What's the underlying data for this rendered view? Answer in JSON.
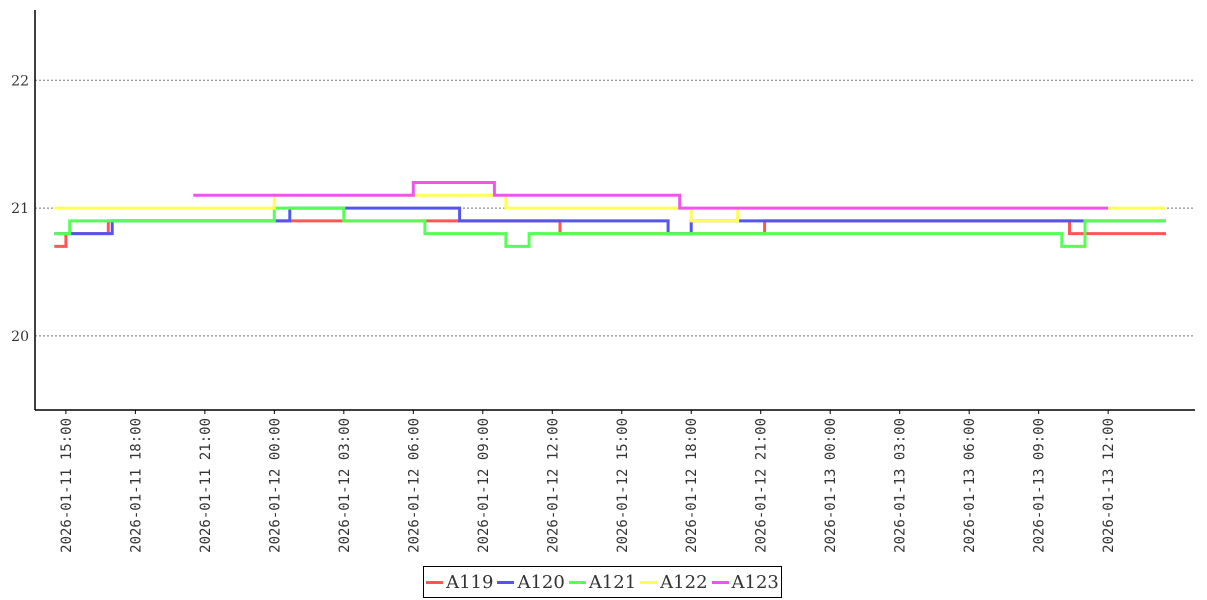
{
  "chart_data": {
    "type": "line",
    "title": "",
    "xlabel": "",
    "ylabel": "",
    "ylim": [
      19.42,
      22.55
    ],
    "xlim": [
      "2026-01-11 13:40",
      "2026-01-13 15:45"
    ],
    "y_ticks": [
      "20",
      "21",
      "22"
    ],
    "x_ticks": [
      "2026-01-11 15:00",
      "2026-01-11 18:00",
      "2026-01-11 21:00",
      "2026-01-12 00:00",
      "2026-01-12 03:00",
      "2026-01-12 06:00",
      "2026-01-12 09:00",
      "2026-01-12 12:00",
      "2026-01-12 15:00",
      "2026-01-12 18:00",
      "2026-01-12 21:00",
      "2026-01-13 00:00",
      "2026-01-13 03:00",
      "2026-01-13 06:00",
      "2026-01-13 09:00",
      "2026-01-13 12:00"
    ],
    "grid": "horizontal dotted",
    "legend_position": "bottom-center",
    "series": [
      {
        "name": "A119",
        "color": "#ff5555",
        "points": [
          [
            "2026-01-11 14:30",
            20.7
          ],
          [
            "2026-01-11 15:00",
            20.8
          ],
          [
            "2026-01-11 16:50",
            20.9
          ],
          [
            "2026-01-11 18:20",
            20.9
          ],
          [
            "2026-01-12 09:00",
            20.9
          ],
          [
            "2026-01-12 11:50",
            20.9
          ],
          [
            "2026-01-12 12:20",
            20.8
          ],
          [
            "2026-01-12 15:00",
            20.8
          ],
          [
            "2026-01-12 21:00",
            20.8
          ],
          [
            "2026-01-12 21:10",
            20.9
          ],
          [
            "2026-01-13 10:00",
            20.9
          ],
          [
            "2026-01-13 10:20",
            20.8
          ],
          [
            "2026-01-13 14:30",
            20.8
          ]
        ]
      },
      {
        "name": "A120",
        "color": "#5555ee",
        "points": [
          [
            "2026-01-11 14:30",
            20.8
          ],
          [
            "2026-01-11 16:50",
            20.8
          ],
          [
            "2026-01-11 17:00",
            20.9
          ],
          [
            "2026-01-12 00:30",
            20.9
          ],
          [
            "2026-01-12 00:40",
            21.0
          ],
          [
            "2026-01-12 07:30",
            21.0
          ],
          [
            "2026-01-12 08:00",
            20.9
          ],
          [
            "2026-01-12 16:00",
            20.9
          ],
          [
            "2026-01-12 17:00",
            20.8
          ],
          [
            "2026-01-12 18:00",
            20.9
          ],
          [
            "2026-01-12 22:00",
            20.9
          ],
          [
            "2026-01-13 14:30",
            20.9
          ]
        ]
      },
      {
        "name": "A121",
        "color": "#55ff55",
        "points": [
          [
            "2026-01-11 14:30",
            20.8
          ],
          [
            "2026-01-11 15:00",
            20.8
          ],
          [
            "2026-01-11 15:10",
            20.9
          ],
          [
            "2026-01-11 23:00",
            20.9
          ],
          [
            "2026-01-12 00:00",
            21.0
          ],
          [
            "2026-01-12 03:00",
            20.9
          ],
          [
            "2026-01-12 06:00",
            20.9
          ],
          [
            "2026-01-12 06:30",
            20.8
          ],
          [
            "2026-01-12 09:00",
            20.8
          ],
          [
            "2026-01-12 10:00",
            20.7
          ],
          [
            "2026-01-12 11:00",
            20.8
          ],
          [
            "2026-01-12 15:00",
            20.8
          ],
          [
            "2026-01-12 21:00",
            20.8
          ],
          [
            "2026-01-13 09:00",
            20.8
          ],
          [
            "2026-01-13 10:00",
            20.7
          ],
          [
            "2026-01-13 11:00",
            20.9
          ],
          [
            "2026-01-13 14:30",
            20.9
          ]
        ]
      },
      {
        "name": "A122",
        "color": "#ffff55",
        "points": [
          [
            "2026-01-11 14:30",
            21.0
          ],
          [
            "2026-01-11 23:30",
            21.0
          ],
          [
            "2026-01-12 00:00",
            21.1
          ],
          [
            "2026-01-12 09:30",
            21.1
          ],
          [
            "2026-01-12 10:00",
            21.0
          ],
          [
            "2026-01-12 15:00",
            21.0
          ],
          [
            "2026-01-12 18:00",
            20.9
          ],
          [
            "2026-01-12 20:00",
            21.0
          ],
          [
            "2026-01-13 14:30",
            21.0
          ]
        ]
      },
      {
        "name": "A123",
        "color": "#ee55ee",
        "points": [
          [
            "2026-01-11 20:30",
            21.1
          ],
          [
            "2026-01-11 21:00",
            21.1
          ],
          [
            "2026-01-11 22:00",
            21.1
          ],
          [
            "2026-01-11 23:30",
            21.1
          ],
          [
            "2026-01-12 06:00",
            21.2
          ],
          [
            "2026-01-12 06:30",
            21.2
          ],
          [
            "2026-01-12 09:30",
            21.1
          ],
          [
            "2026-01-12 11:00",
            21.1
          ],
          [
            "2026-01-12 17:30",
            21.0
          ],
          [
            "2026-01-12 20:00",
            21.0
          ],
          [
            "2026-01-13 11:00",
            21.0
          ],
          [
            "2026-01-13 12:00",
            21.0
          ]
        ]
      }
    ]
  }
}
